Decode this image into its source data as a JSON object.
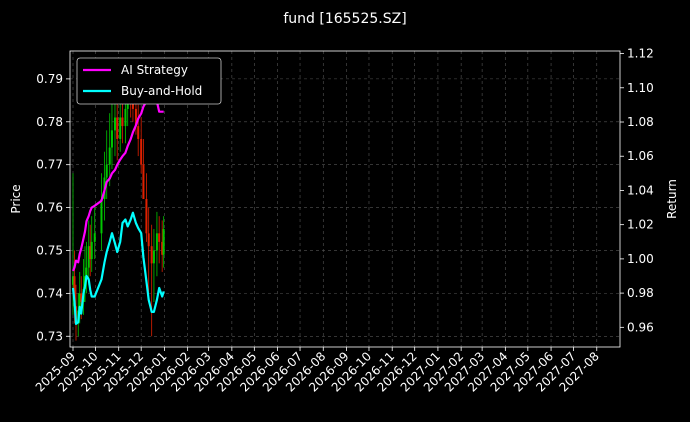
{
  "chart_data": {
    "type": "line",
    "title": "fund [165525.SZ]",
    "ylabel_left": "Price",
    "ylabel_right": "Return",
    "ylim_left": [
      0.7275,
      0.7965
    ],
    "ylim_right": [
      0.9485,
      1.1215
    ],
    "yticks_left": [
      "0.73",
      "0.74",
      "0.75",
      "0.76",
      "0.77",
      "0.78",
      "0.79"
    ],
    "yticks_right": [
      "0.96",
      "0.98",
      "1.00",
      "1.02",
      "1.04",
      "1.06",
      "1.08",
      "1.10",
      "1.12"
    ],
    "x_months": [
      "2025-09",
      "2025-10",
      "2025-11",
      "2025-12",
      "2026-01",
      "2026-02",
      "2026-03",
      "2026-04",
      "2026-05",
      "2026-06",
      "2026-07",
      "2026-08",
      "2026-09",
      "2026-10",
      "2026-11",
      "2026-12",
      "2027-01",
      "2027-02",
      "2027-03",
      "2027-04",
      "2027-05",
      "2027-06",
      "2027-07",
      "2027-08"
    ],
    "xlim": [
      "2025-08-28",
      "2027-09-01"
    ],
    "grid": true,
    "legend_position": "upper-left",
    "colors": {
      "ai_strategy": "#ff00ff",
      "buy_and_hold": "#00ffff",
      "candle_up": "#00c800",
      "candle_down": "#e02000",
      "background": "#000000"
    },
    "series": [
      {
        "name": "AI Strategy",
        "axis": "right",
        "x": [
          "2025-09-01",
          "2025-09-03",
          "2025-09-05",
          "2025-09-08",
          "2025-09-10",
          "2025-09-12",
          "2025-09-15",
          "2025-09-17",
          "2025-09-19",
          "2025-09-22",
          "2025-09-24",
          "2025-09-26",
          "2025-09-30",
          "2025-10-09",
          "2025-10-13",
          "2025-10-16",
          "2025-10-20",
          "2025-10-23",
          "2025-10-27",
          "2025-10-30",
          "2025-11-03",
          "2025-11-06",
          "2025-11-10",
          "2025-11-13",
          "2025-11-17",
          "2025-11-20",
          "2025-11-24",
          "2025-11-27",
          "2025-12-01",
          "2025-12-04",
          "2025-12-08",
          "2025-12-11",
          "2025-12-15",
          "2025-12-18",
          "2025-12-22",
          "2025-12-25",
          "2025-12-29",
          "2025-12-31"
        ],
        "values": [
          0.993,
          0.995,
          0.999,
          0.998,
          1.003,
          1.006,
          1.012,
          1.016,
          1.022,
          1.025,
          1.028,
          1.03,
          1.031,
          1.034,
          1.04,
          1.045,
          1.047,
          1.05,
          1.052,
          1.055,
          1.058,
          1.06,
          1.062,
          1.066,
          1.07,
          1.074,
          1.078,
          1.082,
          1.085,
          1.089,
          1.092,
          1.095,
          1.097,
          1.098,
          1.092,
          1.086,
          1.086,
          1.086
        ]
      },
      {
        "name": "Buy-and-Hold",
        "axis": "right",
        "x": [
          "2025-09-01",
          "2025-09-03",
          "2025-09-05",
          "2025-09-08",
          "2025-09-10",
          "2025-09-12",
          "2025-09-15",
          "2025-09-17",
          "2025-09-19",
          "2025-09-22",
          "2025-09-24",
          "2025-09-26",
          "2025-09-30",
          "2025-10-09",
          "2025-10-13",
          "2025-10-16",
          "2025-10-20",
          "2025-10-23",
          "2025-10-27",
          "2025-10-30",
          "2025-11-03",
          "2025-11-06",
          "2025-11-10",
          "2025-11-13",
          "2025-11-17",
          "2025-11-20",
          "2025-11-24",
          "2025-11-27",
          "2025-12-01",
          "2025-12-04",
          "2025-12-08",
          "2025-12-11",
          "2025-12-15",
          "2025-12-18",
          "2025-12-22",
          "2025-12-25",
          "2025-12-29",
          "2025-12-31"
        ],
        "values": [
          0.983,
          0.975,
          0.962,
          0.963,
          0.972,
          0.968,
          0.98,
          0.984,
          0.99,
          0.988,
          0.982,
          0.978,
          0.978,
          0.988,
          0.998,
          1.004,
          1.01,
          1.015,
          1.009,
          1.004,
          1.01,
          1.021,
          1.023,
          1.019,
          1.023,
          1.027,
          1.021,
          1.018,
          1.015,
          1.001,
          0.987,
          0.976,
          0.969,
          0.969,
          0.976,
          0.983,
          0.978,
          0.981
        ]
      }
    ],
    "candles": {
      "axis": "left",
      "x": [
        "2025-09-01",
        "2025-09-03",
        "2025-09-05",
        "2025-09-08",
        "2025-09-10",
        "2025-09-12",
        "2025-09-15",
        "2025-09-17",
        "2025-09-19",
        "2025-09-22",
        "2025-09-24",
        "2025-09-26",
        "2025-09-30",
        "2025-10-09",
        "2025-10-13",
        "2025-10-16",
        "2025-10-20",
        "2025-10-23",
        "2025-10-27",
        "2025-10-30",
        "2025-11-03",
        "2025-11-06",
        "2025-11-10",
        "2025-11-13",
        "2025-11-17",
        "2025-11-20",
        "2025-11-24",
        "2025-11-27",
        "2025-12-01",
        "2025-12-04",
        "2025-12-08",
        "2025-12-11",
        "2025-12-15",
        "2025-12-18",
        "2025-12-22",
        "2025-12-25",
        "2025-12-29",
        "2025-12-31"
      ],
      "open": [
        0.742,
        0.744,
        0.737,
        0.733,
        0.736,
        0.74,
        0.738,
        0.741,
        0.744,
        0.746,
        0.751,
        0.748,
        0.752,
        0.754,
        0.762,
        0.767,
        0.77,
        0.774,
        0.778,
        0.781,
        0.776,
        0.781,
        0.779,
        0.783,
        0.788,
        0.786,
        0.783,
        0.779,
        0.776,
        0.77,
        0.762,
        0.754,
        0.751,
        0.747,
        0.75,
        0.754,
        0.752,
        0.749
      ],
      "close": [
        0.744,
        0.737,
        0.733,
        0.736,
        0.74,
        0.738,
        0.741,
        0.744,
        0.746,
        0.751,
        0.748,
        0.752,
        0.754,
        0.762,
        0.767,
        0.77,
        0.774,
        0.778,
        0.781,
        0.776,
        0.781,
        0.779,
        0.783,
        0.788,
        0.786,
        0.783,
        0.779,
        0.776,
        0.77,
        0.762,
        0.754,
        0.751,
        0.747,
        0.75,
        0.754,
        0.752,
        0.749,
        0.755
      ],
      "high": [
        0.768,
        0.75,
        0.742,
        0.74,
        0.745,
        0.744,
        0.748,
        0.751,
        0.752,
        0.757,
        0.756,
        0.758,
        0.76,
        0.768,
        0.773,
        0.778,
        0.782,
        0.787,
        0.791,
        0.785,
        0.789,
        0.788,
        0.79,
        0.793,
        0.794,
        0.79,
        0.787,
        0.784,
        0.781,
        0.776,
        0.768,
        0.76,
        0.756,
        0.755,
        0.759,
        0.758,
        0.757,
        0.758
      ],
      "low": [
        0.735,
        0.733,
        0.729,
        0.73,
        0.733,
        0.734,
        0.735,
        0.738,
        0.74,
        0.742,
        0.744,
        0.745,
        0.748,
        0.75,
        0.757,
        0.762,
        0.765,
        0.769,
        0.772,
        0.771,
        0.773,
        0.775,
        0.775,
        0.779,
        0.781,
        0.78,
        0.777,
        0.772,
        0.768,
        0.762,
        0.752,
        0.74,
        0.73,
        0.738,
        0.744,
        0.747,
        0.745,
        0.746
      ]
    }
  }
}
